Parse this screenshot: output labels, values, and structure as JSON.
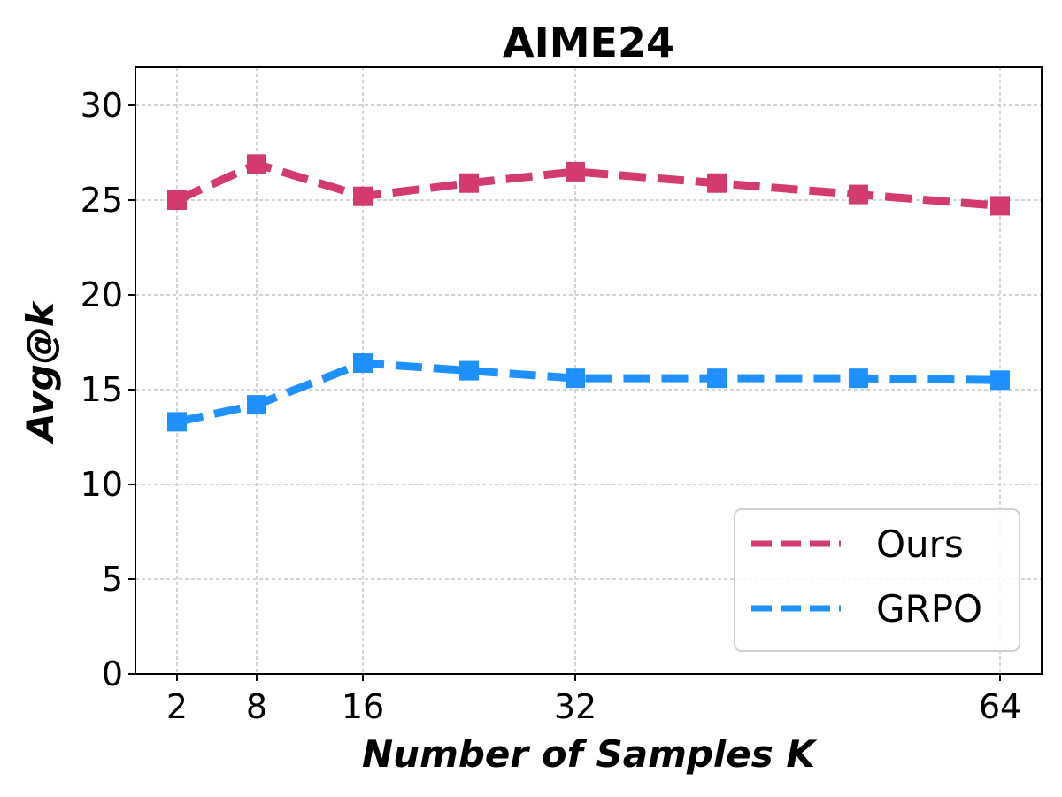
{
  "chart_data": {
    "type": "line",
    "title": "AIME24",
    "xlabel": "Number of Samples K",
    "ylabel": "Avg@k",
    "x": [
      2,
      8,
      16,
      24,
      32,
      42.67,
      53.33,
      64
    ],
    "xticks": [
      2,
      8,
      16,
      32,
      64
    ],
    "yticks": [
      0,
      5,
      10,
      15,
      20,
      25,
      30
    ],
    "xlim": [
      -1.5,
      66.5
    ],
    "ylim": [
      0,
      32
    ],
    "grid": true,
    "legend_position": "lower right",
    "series": [
      {
        "name": "Ours",
        "color": "#D33A6D",
        "linestyle": "dashed",
        "marker": "square",
        "values": [
          25.0,
          26.9,
          25.2,
          25.9,
          26.5,
          25.9,
          25.3,
          24.7
        ]
      },
      {
        "name": "GRPO",
        "color": "#1E90FF",
        "linestyle": "dashed",
        "marker": "square",
        "values": [
          13.3,
          14.2,
          16.4,
          16.0,
          15.6,
          15.6,
          15.6,
          15.5
        ]
      }
    ]
  }
}
